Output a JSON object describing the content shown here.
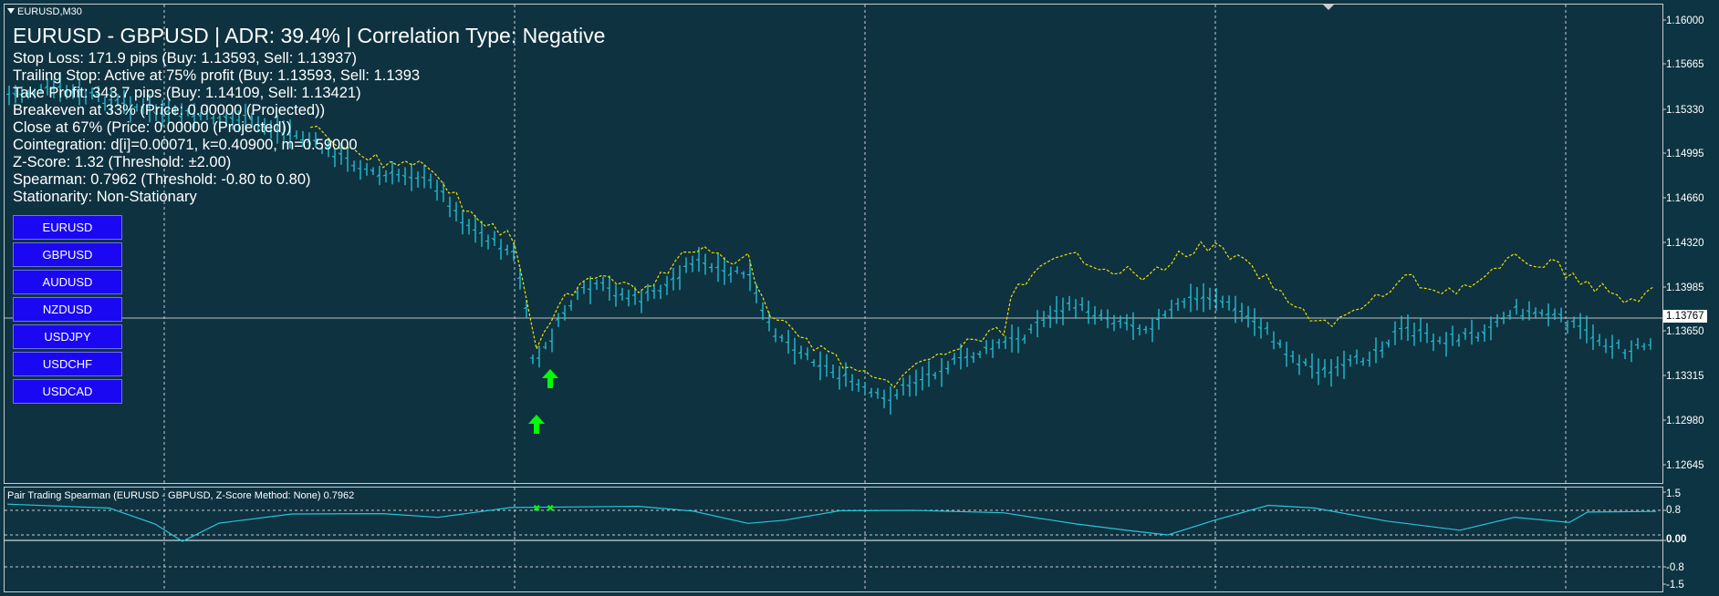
{
  "chart": {
    "symbol_label": "EURUSD,M30",
    "headline": "EURUSD - GBPUSD | ADR: 39.4% | Correlation Type: Negative",
    "info_lines": [
      "Stop Loss: 171.9 pips (Buy: 1.13593, Sell: 1.13937)",
      "Trailing Stop: Active at 75% profit (Buy: 1.13593, Sell: 1.1393",
      "Take Profit: 343.7 pips (Buy: 1.14109, Sell: 1.13421)",
      "Breakeven at 33% (Price: 0.00000 (Projected))",
      "Close at 67% (Price: 0.00000 (Projected))",
      "Cointegration: d[i]=0.00071, k=0.40900, m=0.59000",
      "Z-Score: 1.32 (Threshold: ±2.00)",
      "Spearman: 0.7962 (Threshold: -0.80 to 0.80)",
      "Stationarity: Non-Stationary"
    ],
    "symbol_buttons": [
      "EURUSD",
      "GBPUSD",
      "AUDUSD",
      "NZDUSD",
      "USDJPY",
      "USDCHF",
      "USDCAD"
    ],
    "price_axis": [
      "1.16000",
      "1.15665",
      "1.15330",
      "1.14995",
      "1.14660",
      "1.14320",
      "1.13985",
      "1.13650",
      "1.13315",
      "1.12980",
      "1.12645"
    ],
    "current_price": "1.13767",
    "colors": {
      "background": "#0e3240",
      "bars": "#26c6da",
      "overlay_line": "#f0e000",
      "buy_arrow": "#00ff00",
      "button": "#1a08f2",
      "grid": "#c8ccd0"
    }
  },
  "indicator": {
    "title": "Pair Trading Spearman (EURUSD - GBPUSD, Z-Score Method: None) 0.7962",
    "axis": [
      "1.5",
      "0.8",
      "0.00",
      "-0.8",
      "-1.5"
    ],
    "line_color": "#26c6da"
  }
}
